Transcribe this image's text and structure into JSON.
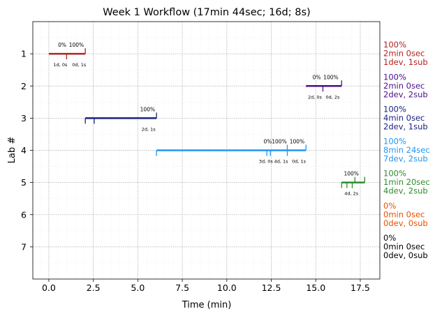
{
  "chart_data": {
    "type": "timeline",
    "title": "Week 1 Workflow (17min 44sec; 16d; 8s)",
    "xlabel": "Time (min)",
    "ylabel": "Lab #",
    "xlim": [
      -0.9,
      18.6
    ],
    "ylim": [
      8.0,
      0.0
    ],
    "xticks": [
      0.0,
      2.5,
      5.0,
      7.5,
      10.0,
      12.5,
      15.0,
      17.5
    ],
    "xtick_labels": [
      "0.0",
      "2.5",
      "5.0",
      "7.5",
      "10.0",
      "12.5",
      "15.0",
      "17.5"
    ],
    "yticks": [
      1,
      2,
      3,
      4,
      5,
      6,
      7
    ],
    "ytick_labels": [
      "1",
      "2",
      "3",
      "4",
      "5",
      "6",
      "7"
    ],
    "grid": true,
    "labs": [
      {
        "lab": 1,
        "color": "#b22222",
        "start": 0.0,
        "end": 2.05,
        "markers_up": [
          2.05
        ],
        "markers_down": [
          1.0
        ],
        "top_labels": [
          {
            "x": 0.75,
            "text": "0%"
          },
          {
            "x": 1.55,
            "text": "100%"
          }
        ],
        "bottom_labels": [
          {
            "x": 0.65,
            "text": "1d, 0s"
          },
          {
            "x": 1.7,
            "text": "0d, 1s"
          }
        ],
        "summary": [
          "100%",
          "2min 0sec",
          "1dev, 1sub"
        ]
      },
      {
        "lab": 2,
        "color": "#4b0f8c",
        "start": 14.45,
        "end": 16.45,
        "markers_up": [
          16.45
        ],
        "markers_down": [
          15.4
        ],
        "top_labels": [
          {
            "x": 15.05,
            "text": "0%"
          },
          {
            "x": 15.85,
            "text": "100%"
          }
        ],
        "bottom_labels": [
          {
            "x": 14.95,
            "text": "2d, 0s"
          },
          {
            "x": 15.95,
            "text": "0d, 2s"
          }
        ],
        "summary": [
          "100%",
          "2min 0sec",
          "2dev, 2sub"
        ]
      },
      {
        "lab": 3,
        "color": "#1a237e",
        "start": 2.05,
        "end": 6.05,
        "markers_up": [
          6.05
        ],
        "markers_down": [
          2.05,
          2.55
        ],
        "top_labels": [
          {
            "x": 5.55,
            "text": "100%"
          }
        ],
        "bottom_labels": [
          {
            "x": 5.6,
            "text": "2d, 1s"
          }
        ],
        "summary": [
          "100%",
          "4min 0sec",
          "2dev, 1sub"
        ]
      },
      {
        "lab": 4,
        "color": "#2196f3",
        "start": 6.05,
        "end": 14.45,
        "markers_up": [
          13.4,
          14.45
        ],
        "markers_down": [
          6.05,
          12.25,
          12.45,
          13.4
        ],
        "top_labels": [
          {
            "x": 12.3,
            "text": "0%"
          },
          {
            "x": 12.95,
            "text": "100%"
          },
          {
            "x": 13.95,
            "text": "100%"
          }
        ],
        "bottom_labels": [
          {
            "x": 12.2,
            "text": "3d, 0s"
          },
          {
            "x": 13.05,
            "text": "4d, 1s"
          },
          {
            "x": 14.05,
            "text": "0d, 1s"
          }
        ],
        "summary": [
          "100%",
          "8min 24sec",
          "7dev, 2sub"
        ]
      },
      {
        "lab": 5,
        "color": "#2e8b2e",
        "start": 16.45,
        "end": 17.75,
        "markers_up": [
          17.2,
          17.75
        ],
        "markers_down": [
          16.45,
          16.75,
          17.05
        ],
        "top_labels": [
          {
            "x": 17.0,
            "text": "100%"
          }
        ],
        "bottom_labels": [
          {
            "x": 17.0,
            "text": "4d, 2s"
          }
        ],
        "summary": [
          "100%",
          "1min 20sec",
          "4dev, 2sub"
        ]
      },
      {
        "lab": 6,
        "color": "#e65100",
        "start": null,
        "end": null,
        "markers_up": [],
        "markers_down": [],
        "top_labels": [],
        "bottom_labels": [],
        "summary": [
          "0%",
          "0min 0sec",
          "0dev, 0sub"
        ]
      },
      {
        "lab": 7,
        "color": "#000000",
        "start": null,
        "end": null,
        "markers_up": [],
        "markers_down": [],
        "top_labels": [],
        "bottom_labels": [],
        "summary": [
          "0%",
          "0min 0sec",
          "0dev, 0sub"
        ]
      }
    ]
  }
}
